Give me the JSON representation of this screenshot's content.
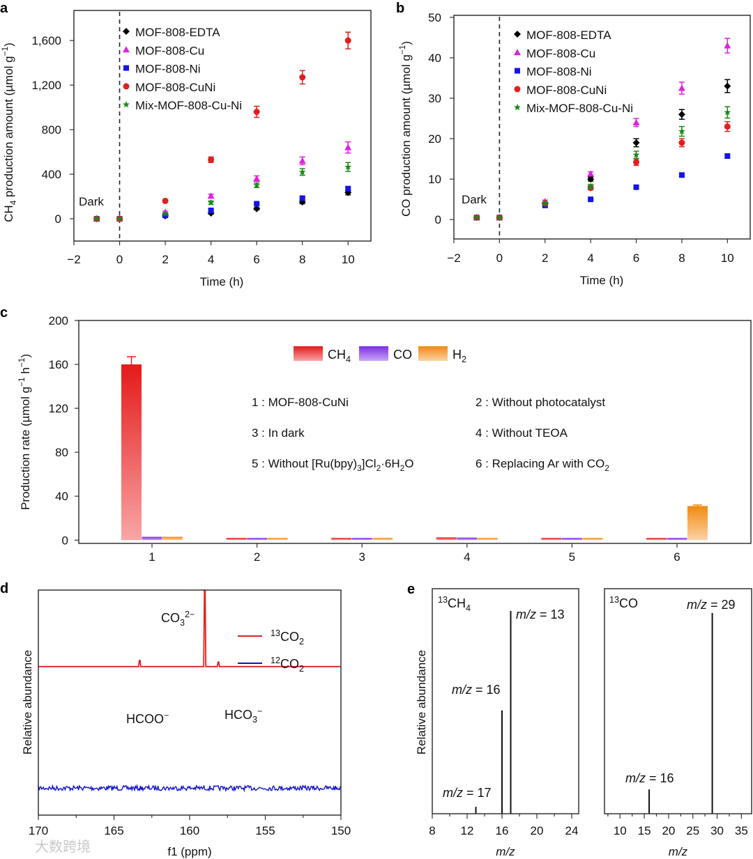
{
  "panel_letters": [
    "a",
    "b",
    "c",
    "d",
    "e"
  ],
  "watermark": "大数跨境",
  "chart_data": [
    {
      "id": "a",
      "type": "scatter",
      "title": "",
      "xlabel": [
        [
          "Time (h)",
          ""
        ]
      ],
      "ylabel": [
        [
          "CH",
          ""
        ],
        [
          "4",
          "sub"
        ],
        [
          " production amount (µmol g",
          ""
        ],
        [
          "−1",
          "sup"
        ],
        [
          ")",
          ""
        ]
      ],
      "xlim": [
        -2,
        11
      ],
      "ylim": [
        -200,
        1870
      ],
      "xticks": [
        -2,
        0,
        2,
        4,
        6,
        8,
        10
      ],
      "xtick_labels": [
        "−2",
        "0",
        "2",
        "4",
        "6",
        "8",
        "10"
      ],
      "yticks": [
        0,
        400,
        800,
        1200,
        1600
      ],
      "ytick_labels": [
        "0",
        "400",
        "800",
        "1,200",
        "1,600"
      ],
      "annotation": "Dark",
      "divider_x": 0,
      "legend_position": "top-left",
      "x": [
        -1,
        0,
        2,
        4,
        6,
        8,
        10
      ],
      "series": [
        {
          "name": "MOF-808-EDTA",
          "marker": "diamond",
          "color": "#000000",
          "values": [
            0,
            0,
            25,
            50,
            90,
            150,
            235
          ],
          "errors": [
            0,
            0,
            5,
            8,
            10,
            15,
            20
          ]
        },
        {
          "name": "MOF-808-Cu",
          "marker": "triangle",
          "color": "#e020e0",
          "values": [
            0,
            0,
            60,
            205,
            360,
            520,
            640
          ],
          "errors": [
            0,
            0,
            8,
            15,
            25,
            35,
            50
          ]
        },
        {
          "name": "MOF-808-Ni",
          "marker": "square",
          "color": "#1414e6",
          "values": [
            0,
            0,
            30,
            75,
            135,
            185,
            270
          ],
          "errors": [
            0,
            0,
            5,
            8,
            10,
            10,
            20
          ]
        },
        {
          "name": "MOF-808-CuNi",
          "marker": "circle",
          "color": "#e02020",
          "values": [
            0,
            0,
            160,
            530,
            960,
            1270,
            1600
          ],
          "errors": [
            0,
            0,
            10,
            25,
            50,
            60,
            75
          ]
        },
        {
          "name": "Mix-MOF-808-Cu-Ni",
          "marker": "star",
          "color": "#1a8a1a",
          "values": [
            0,
            0,
            45,
            145,
            300,
            420,
            465
          ],
          "errors": [
            0,
            0,
            8,
            15,
            20,
            30,
            40
          ]
        }
      ]
    },
    {
      "id": "b",
      "type": "scatter",
      "title": "",
      "xlabel": [
        [
          "Time (h)",
          ""
        ]
      ],
      "ylabel": [
        [
          "CO production amount (µmol g",
          ""
        ],
        [
          "−1",
          "sup"
        ],
        [
          ")",
          ""
        ]
      ],
      "xlim": [
        -2,
        11
      ],
      "ylim": [
        -4.8,
        50.5
      ],
      "xticks": [
        -2,
        0,
        2,
        4,
        6,
        8,
        10
      ],
      "xtick_labels": [
        "−2",
        "0",
        "2",
        "4",
        "6",
        "8",
        "10"
      ],
      "yticks": [
        0,
        10,
        20,
        30,
        40,
        50
      ],
      "ytick_labels": [
        "0",
        "10",
        "20",
        "30",
        "40",
        "50"
      ],
      "annotation": "Dark",
      "divider_x": 0,
      "legend_position": "top-left",
      "x": [
        -1,
        0,
        2,
        4,
        6,
        8,
        10
      ],
      "series": [
        {
          "name": "MOF-808-EDTA",
          "marker": "diamond",
          "color": "#000000",
          "values": [
            0.5,
            0.5,
            4,
            10,
            19,
            26,
            33
          ],
          "errors": [
            0,
            0,
            0.3,
            0.5,
            1,
            1.2,
            1.6
          ]
        },
        {
          "name": "MOF-808-Cu",
          "marker": "triangle",
          "color": "#e020e0",
          "values": [
            0.5,
            0.5,
            4.5,
            11.3,
            24,
            32.5,
            43
          ],
          "errors": [
            0,
            0,
            0.3,
            0.5,
            1,
            1.5,
            1.8
          ]
        },
        {
          "name": "MOF-808-Ni",
          "marker": "square",
          "color": "#1414e6",
          "values": [
            0.5,
            0.5,
            3.5,
            5,
            8,
            11,
            15.7
          ],
          "errors": [
            0,
            0,
            0.2,
            0.2,
            0.3,
            0.3,
            0.5
          ]
        },
        {
          "name": "MOF-808-CuNi",
          "marker": "circle",
          "color": "#e02020",
          "values": [
            0.5,
            0.5,
            4,
            7.8,
            14.2,
            19,
            23
          ],
          "errors": [
            0,
            0,
            0.3,
            0.4,
            0.8,
            1,
            1.2
          ]
        },
        {
          "name": "Mix-MOF-808-Cu-Ni",
          "marker": "star",
          "color": "#1a8a1a",
          "values": [
            0.5,
            0.5,
            4,
            8.2,
            16,
            21.8,
            26.5
          ],
          "errors": [
            0,
            0,
            0.3,
            0.5,
            0.9,
            1.2,
            1.4
          ]
        }
      ]
    },
    {
      "id": "c",
      "type": "bar",
      "xlabel": [
        [
          "",
          ""
        ]
      ],
      "ylabel": [
        [
          "Production rate (µmol g",
          ""
        ],
        [
          "−1",
          "sup"
        ],
        [
          " h",
          ""
        ],
        [
          "−1",
          "sup"
        ],
        [
          ")",
          ""
        ]
      ],
      "ylim": [
        -3,
        200
      ],
      "yticks": [
        0,
        40,
        80,
        120,
        160,
        200
      ],
      "ytick_labels": [
        "0",
        "40",
        "80",
        "120",
        "160",
        "200"
      ],
      "categories": [
        "1",
        "2",
        "3",
        "4",
        "5",
        "6"
      ],
      "legend_position": "top-center",
      "series": [
        {
          "name": [
            [
              "CH",
              ""
            ],
            [
              "4",
              "sub"
            ]
          ],
          "id": "CH4",
          "color_top": "#e31a1a",
          "color_bottom": "#f9a5a5",
          "values": [
            160,
            2,
            2,
            2.5,
            2,
            2
          ],
          "errors": [
            7,
            0,
            0,
            0,
            0,
            0
          ]
        },
        {
          "name": [
            [
              "CO",
              ""
            ]
          ],
          "id": "CO",
          "color_top": "#7a2ee6",
          "color_bottom": "#cba6f7",
          "values": [
            3,
            2,
            2,
            2.3,
            2,
            2
          ],
          "errors": [
            0,
            0,
            0,
            0,
            0,
            0
          ]
        },
        {
          "name": [
            [
              "H",
              ""
            ],
            [
              "2",
              "sub"
            ]
          ],
          "id": "H2",
          "color_top": "#f08a10",
          "color_bottom": "#fcd2a6",
          "values": [
            3,
            2,
            2,
            2,
            2,
            31
          ],
          "errors": [
            0,
            0,
            0,
            0,
            0,
            1
          ]
        }
      ],
      "conditions": [
        [
          [
            "1 : MOF-808-CuNi",
            ""
          ]
        ],
        [
          [
            "2 : Without photocatalyst",
            ""
          ]
        ],
        [
          [
            "3 : In dark",
            ""
          ]
        ],
        [
          [
            "4 : Without TEOA",
            ""
          ]
        ],
        [
          [
            "5 : Without [Ru(bpy)",
            ""
          ],
          [
            "3",
            "sub"
          ],
          [
            "]Cl",
            ""
          ],
          [
            "2",
            "sub"
          ],
          [
            "·6H",
            ""
          ],
          [
            "2",
            "sub"
          ],
          [
            "O",
            ""
          ]
        ],
        [
          [
            "6 : Replacing Ar with CO",
            ""
          ],
          [
            "2",
            "sub"
          ]
        ]
      ]
    },
    {
      "id": "d",
      "type": "line",
      "xlabel": [
        [
          "f1 (ppm)",
          ""
        ]
      ],
      "ylabel": [
        [
          "Relative abundance",
          ""
        ]
      ],
      "xlim": [
        170,
        150
      ],
      "xticks": [
        170,
        165,
        160,
        155,
        150
      ],
      "xtick_labels": [
        "170",
        "165",
        "160",
        "155",
        "150"
      ],
      "legend_position": "top-right",
      "series": [
        {
          "name": [
            [
              "13",
              "sup"
            ],
            [
              "CO",
              ""
            ],
            [
              "2",
              "sub"
            ]
          ],
          "color": "#e02020",
          "offset": 0.66,
          "peaks": [
            {
              "ppm": 163.3,
              "height": 0.08
            },
            {
              "ppm": 159.0,
              "height": 1.0
            },
            {
              "ppm": 158.1,
              "height": 0.06
            }
          ]
        },
        {
          "name": [
            [
              "12",
              "sup"
            ],
            [
              "CO",
              ""
            ],
            [
              "2",
              "sub"
            ]
          ],
          "color": "#1010d0",
          "offset": 0.12,
          "peaks": []
        }
      ],
      "annotations": [
        {
          "ppm": 159.0,
          "text": [
            [
              "CO",
              ""
            ],
            [
              "3",
              "sub"
            ],
            [
              "2−",
              "sup"
            ]
          ]
        },
        {
          "ppm": 163.3,
          "text": [
            [
              "HCOO",
              ""
            ],
            [
              "−",
              "sup"
            ]
          ]
        },
        {
          "ppm": 158.1,
          "text": [
            [
              "HCO",
              ""
            ],
            [
              "3",
              "sub"
            ],
            [
              "−",
              "sup"
            ]
          ]
        }
      ]
    },
    {
      "id": "e1",
      "type": "bar",
      "title": [
        [
          "13",
          "sup"
        ],
        [
          "CH",
          ""
        ],
        [
          "4",
          "sub"
        ]
      ],
      "xlabel": [
        [
          "m/z",
          "i"
        ]
      ],
      "ylabel": [
        [
          "Relative abundance",
          ""
        ]
      ],
      "xlim": [
        8,
        24.8
      ],
      "ylim": [
        0,
        1.11
      ],
      "xticks": [
        8,
        12,
        16,
        20,
        24
      ],
      "xtick_labels": [
        "8",
        "12",
        "16",
        "20",
        "24"
      ],
      "peaks": [
        {
          "mz": 13,
          "value": 0.034,
          "label": [
            [
              "m/z",
              "i"
            ],
            [
              " = 13",
              ""
            ]
          ]
        },
        {
          "mz": 16,
          "value": 0.51,
          "label": [
            [
              "m/z",
              "i"
            ],
            [
              " = 16",
              ""
            ]
          ]
        },
        {
          "mz": 17,
          "value": 1.0,
          "label": [
            [
              "m/z",
              "i"
            ],
            [
              " = 17",
              ""
            ]
          ]
        }
      ]
    },
    {
      "id": "e2",
      "type": "bar",
      "title": [
        [
          "13",
          "sup"
        ],
        [
          "CO",
          ""
        ]
      ],
      "xlabel": [
        [
          "m/z",
          "i"
        ]
      ],
      "ylabel": [],
      "xlim": [
        6.8,
        37.1
      ],
      "ylim": [
        0,
        1.11
      ],
      "xticks": [
        10,
        15,
        20,
        25,
        30,
        35
      ],
      "xtick_labels": [
        "10",
        "15",
        "20",
        "25",
        "30",
        "35"
      ],
      "peaks": [
        {
          "mz": 16,
          "value": 0.12,
          "label": [
            [
              "m/z",
              "i"
            ],
            [
              " = 16",
              ""
            ]
          ]
        },
        {
          "mz": 29,
          "value": 0.99,
          "label": [
            [
              "m/z",
              "i"
            ],
            [
              " = 29",
              ""
            ]
          ]
        }
      ]
    }
  ]
}
